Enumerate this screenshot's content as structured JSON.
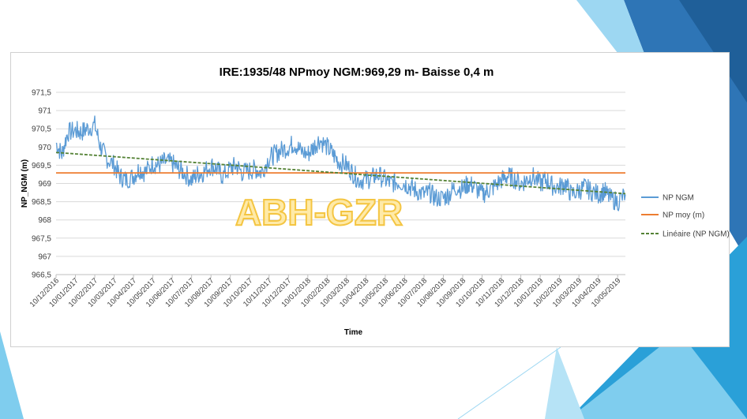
{
  "colors": {
    "np_ngm": "#5b9bd5",
    "np_moy": "#ed7d31",
    "trend": "#548235",
    "grid": "#d9d9d9",
    "watermark_fill": "#ffe699",
    "watermark_stroke": "#f4c542",
    "deco_dark": "#2e75b6",
    "deco_light": "#9dd7f2"
  },
  "watermark": "ABH-GZR",
  "chart_data": {
    "type": "line",
    "title": "IRE:1935/48 NPmoy NGM:969,29 m- Baisse 0,4 m",
    "xlabel": "Time",
    "ylabel": "NP_NGM (m)",
    "ylim": [
      966.5,
      971.5
    ],
    "ytick_labels": [
      "971,5",
      "971",
      "970,5",
      "970",
      "969,5",
      "969",
      "968,5",
      "968",
      "967,5",
      "967",
      "966,5"
    ],
    "grid": true,
    "legend_position": "right",
    "x_tick_labels": [
      "10/12/2016",
      "10/01/2017",
      "10/02/2017",
      "10/03/2017",
      "10/04/2017",
      "10/05/2017",
      "10/06/2017",
      "10/07/2017",
      "10/08/2017",
      "10/09/2017",
      "10/10/2017",
      "10/11/2017",
      "10/12/2017",
      "10/01/2018",
      "10/02/2018",
      "10/03/2018",
      "10/04/2018",
      "10/05/2018",
      "10/06/2018",
      "10/07/2018",
      "10/08/2018",
      "10/09/2018",
      "10/10/2018",
      "10/11/2018",
      "10/12/2018",
      "10/01/2019",
      "10/02/2019",
      "10/03/2019",
      "10/04/2019",
      "10/05/2019"
    ],
    "series": [
      {
        "name": "NP NGM",
        "color": "#5b9bd5",
        "x_month_index": [
          0,
          0.3,
          0.6,
          1,
          1.3,
          1.6,
          2,
          2.3,
          2.6,
          3,
          3.3,
          3.6,
          4,
          4.3,
          4.6,
          5,
          5.3,
          5.6,
          6,
          6.3,
          6.6,
          7,
          7.3,
          7.6,
          8,
          8.3,
          8.6,
          9,
          9.3,
          9.6,
          10,
          10.3,
          10.6,
          11,
          11.3,
          11.6,
          12,
          12.3,
          12.6,
          13,
          13.3,
          13.6,
          14,
          14.3,
          14.6,
          15,
          15.3,
          15.6,
          16,
          16.3,
          16.6,
          17,
          17.3,
          17.6,
          18,
          18.3,
          18.6,
          19,
          19.3,
          19.6,
          20,
          20.3,
          20.6,
          21,
          21.3,
          21.6,
          22,
          22.3,
          22.6,
          23,
          23.3,
          23.6,
          24,
          24.3,
          24.6,
          25,
          25.3,
          25.6,
          26,
          26.3,
          26.6,
          27,
          27.3,
          27.6,
          28,
          28.3,
          28.6,
          29,
          29.4
        ],
        "values": [
          970.1,
          969.8,
          970.4,
          970.45,
          970.4,
          970.5,
          970.6,
          970.0,
          969.7,
          969.5,
          969.2,
          969.1,
          969.2,
          969.4,
          969.3,
          969.55,
          969.5,
          969.6,
          969.55,
          969.4,
          969.3,
          969.1,
          969.25,
          969.3,
          969.5,
          969.4,
          969.2,
          969.4,
          969.5,
          969.3,
          969.35,
          969.4,
          969.3,
          969.7,
          969.8,
          969.9,
          970.0,
          970.1,
          969.9,
          969.8,
          970.0,
          970.2,
          970.0,
          969.8,
          969.6,
          969.5,
          969.3,
          969.1,
          969.1,
          969.15,
          969.25,
          969.1,
          969.0,
          969.05,
          969.0,
          968.9,
          968.8,
          968.7,
          968.75,
          968.6,
          968.6,
          968.7,
          968.9,
          968.85,
          969.0,
          968.9,
          968.7,
          968.8,
          968.9,
          969.1,
          969.2,
          969.15,
          969.0,
          969.1,
          969.2,
          969.0,
          969.1,
          968.95,
          968.9,
          969.0,
          968.7,
          968.8,
          968.9,
          968.8,
          968.7,
          968.8,
          968.6,
          968.5,
          968.7
        ]
      },
      {
        "name": "NP moy (m)",
        "color": "#ed7d31",
        "value": 969.29
      },
      {
        "name": "Linéaire (NP NGM)",
        "color": "#548235",
        "style": "dashed",
        "start_value": 969.85,
        "end_value": 968.72
      }
    ]
  }
}
